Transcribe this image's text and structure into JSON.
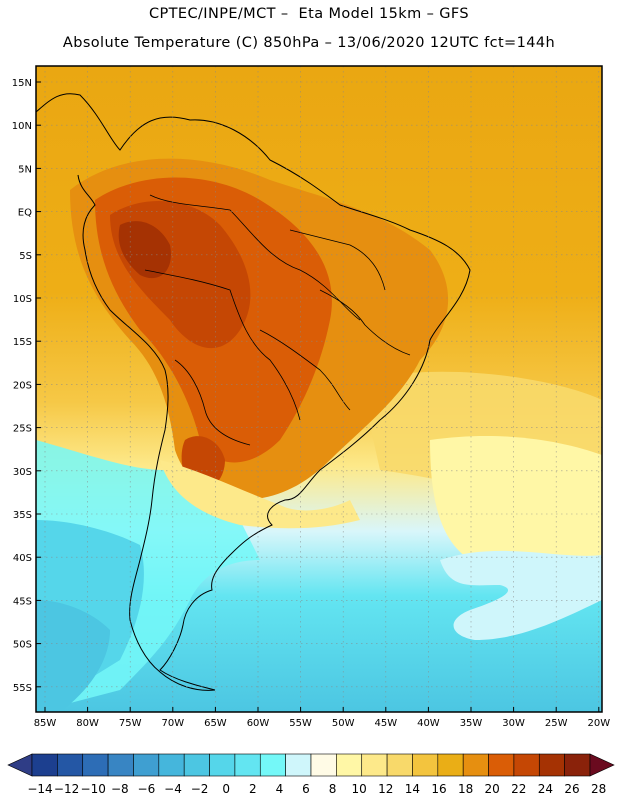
{
  "header": {
    "line1": "CPTEC/INPE/MCT –  Eta Model 15km – GFS",
    "line2": "Absolute Temperature (C) 850hPa – 13/06/2020 12UTC fct=144h"
  },
  "map": {
    "lat_labels": [
      "15N",
      "10N",
      "5N",
      "EQ",
      "5S",
      "10S",
      "15S",
      "20S",
      "25S",
      "30S",
      "35S",
      "40S",
      "45S",
      "50S",
      "55S"
    ],
    "lon_labels": [
      "85W",
      "80W",
      "75W",
      "70W",
      "65W",
      "60W",
      "55W",
      "50W",
      "45W",
      "40W",
      "35W",
      "30W",
      "25W",
      "20W"
    ]
  },
  "colorbar": {
    "labels": [
      "-14",
      "-12",
      "-10",
      "-8",
      "-6",
      "-4",
      "-2",
      "0",
      "2",
      "4",
      "6",
      "8",
      "10",
      "12",
      "14",
      "16",
      "18",
      "20",
      "22",
      "24",
      "26",
      "28"
    ],
    "colors": [
      "#1c3f8f",
      "#2457a5",
      "#2d6db6",
      "#3885c3",
      "#3f9fd1",
      "#45b6dc",
      "#4cc6e2",
      "#55d6ea",
      "#63e5f1",
      "#74f8f8",
      "#cff6fb",
      "#fffbe6",
      "#fff7a6",
      "#fde98a",
      "#f8d96a",
      "#f3c43e",
      "#eaae16",
      "#e68f10",
      "#da5d06",
      "#c54704",
      "#a53203",
      "#8a220a"
    ],
    "under_color": "#2f3d86",
    "over_color": "#6a0a1f"
  }
}
